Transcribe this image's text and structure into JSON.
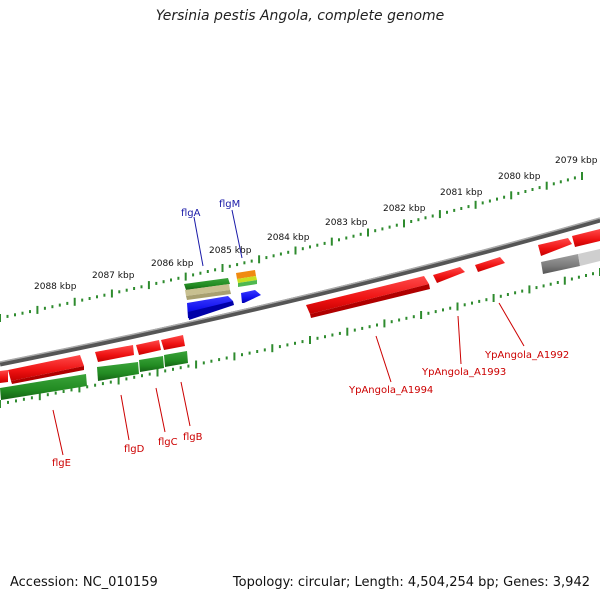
{
  "header": {
    "title": "Yersinia pestis Angola, complete genome"
  },
  "footer": {
    "accession": "Accession: NC_010159",
    "summary": "Topology: circular; Length: 4,504,254 bp; Genes: 3,942"
  },
  "scale_labels": [
    "2079 kbp",
    "2080 kbp",
    "2081 kbp",
    "2082 kbp",
    "2083 kbp",
    "2084 kbp",
    "2085 kbp",
    "2086 kbp",
    "2087 kbp",
    "2088 kbp"
  ],
  "gene_labels": {
    "forward": [
      "flgA",
      "flgM"
    ],
    "reverse": [
      "flgE",
      "flgD",
      "flgC",
      "flgB",
      "YpAngola_A1994",
      "YpAngola_A1993",
      "YpAngola_A1992"
    ]
  },
  "colors": {
    "backbone": "#8a8a8a",
    "reverse_cds": "#ee1111",
    "reverse_gene": "#228b22",
    "forward_cds": "#1111ee",
    "tick": "#2e8b2e",
    "label_red": "#cc0000",
    "label_blue": "#1a1aa8"
  }
}
